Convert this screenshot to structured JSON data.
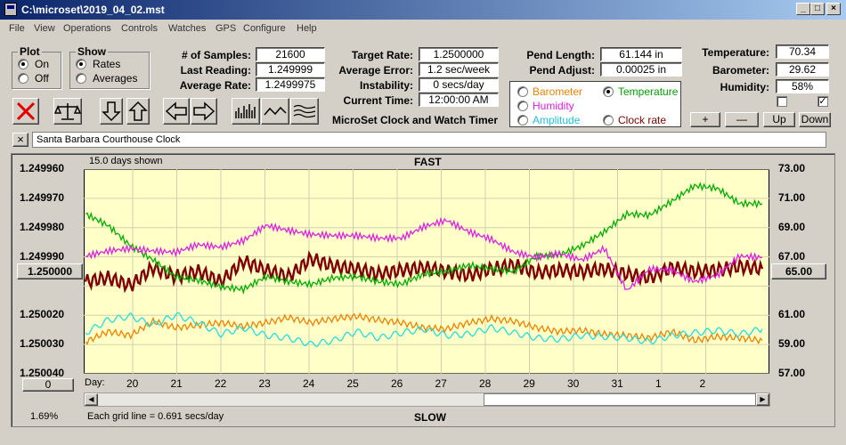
{
  "window": {
    "title": "C:\\microset\\2019_04_02.mst"
  },
  "menu": [
    "File",
    "View",
    "Operations",
    "Controls",
    "Watches",
    "GPS",
    "Configure",
    "Help"
  ],
  "plot_group": {
    "title": "Plot",
    "on": "On",
    "off": "Off",
    "selected": "On"
  },
  "show_group": {
    "title": "Show",
    "rates": "Rates",
    "averages": "Averages",
    "selected": "Rates"
  },
  "stats": {
    "samples_label": "# of Samples:",
    "samples": "21600",
    "last_label": "Last Reading:",
    "last": "1.249999",
    "avg_label": "Average Rate:",
    "avg": "1.2499975",
    "target_label": "Target Rate:",
    "target": "1.2500000",
    "avgerr_label": "Average Error:",
    "avgerr": "1.2 sec/week",
    "instab_label": "Instability:",
    "instab": "0 secs/day",
    "time_label": "Current Time:",
    "time": "12:00:00 AM",
    "pendlen_label": "Pend Length:",
    "pendlen": "61.144 in",
    "pendadj_label": "Pend Adjust:",
    "pendadj": "0.00025 in",
    "temp_label": "Temperature:",
    "temp": "70.34",
    "baro_label": "Barometer:",
    "baro": "29.62",
    "humid_label": "Humidity:",
    "humid": "58%"
  },
  "app_caption": "MicroSet Clock and Watch Timer",
  "sensor_options": {
    "barometer": "Barometer",
    "temperature": "Temperature",
    "humidity": "Humidity",
    "amplitude": "Amplitude",
    "clockrate": "Clock rate",
    "selected": "Temperature"
  },
  "controls": {
    "plus": "+",
    "minus": "—",
    "up": "Up",
    "down": "Down",
    "close_x": "×"
  },
  "clock_name": "Santa Barbara Courthouse Clock",
  "toolbar_icons": [
    "stop-icon",
    "balance-icon",
    "arrow-down-icon",
    "arrow-up-icon",
    "arrow-left-icon",
    "arrow-right-icon",
    "bar-chart-icon",
    "wave-icon",
    "multi-wave-icon"
  ],
  "colors": {
    "rate": "#800000",
    "temperature": "#00b000",
    "humidity": "#e020e0",
    "barometer": "#f08000",
    "amplitude": "#20e0e0",
    "plot_bg": "#ffffc8"
  },
  "chart_header": {
    "days_shown": "15.0 days shown",
    "fast": "FAST",
    "slow": "SLOW",
    "grid_note": "Each grid line = 0.691 secs/day",
    "day_label": "Day:",
    "pct": "1.69%",
    "left_button": "1.250000",
    "right_button": "65.00",
    "zero_button": "0"
  },
  "chart_data": {
    "type": "line",
    "y_left_ticks": [
      "1.249960",
      "1.249970",
      "1.249980",
      "1.249990",
      "1.250000",
      "1.250020",
      "1.250030",
      "1.250040"
    ],
    "y_right_ticks": [
      "73.00",
      "71.00",
      "69.00",
      "67.00",
      "65.00",
      "61.00",
      "59.00",
      "57.00"
    ],
    "y_right_range": [
      57,
      73
    ],
    "x_day_ticks": [
      "20",
      "21",
      "22",
      "23",
      "24",
      "25",
      "26",
      "27",
      "28",
      "29",
      "30",
      "31",
      "1",
      "2"
    ],
    "x_range_days": [
      0,
      15
    ],
    "series": [
      {
        "color": "#800000",
        "x": [
          0,
          0.5,
          1,
          1.5,
          2,
          2.5,
          3,
          3.5,
          4,
          4.5,
          5,
          5.5,
          6,
          6.5,
          7,
          7.5,
          8,
          8.5,
          9,
          9.5,
          10,
          10.5,
          11,
          11.5,
          12,
          12.5,
          13,
          13.5,
          14,
          14.5,
          15
        ],
        "y": [
          64.2,
          64.5,
          63.9,
          65.3,
          64.6,
          65.0,
          64.2,
          65.8,
          65.1,
          64.6,
          66.0,
          65.4,
          65.2,
          64.8,
          65.1,
          65.3,
          65.0,
          64.7,
          65.2,
          65.5,
          64.9,
          65.1,
          65.0,
          65.2,
          64.8,
          64.5,
          65.3,
          65.0,
          65.1,
          65.4,
          65.2
        ]
      },
      {
        "color": "#00b000",
        "x": [
          0,
          0.5,
          1,
          1.5,
          2,
          2.5,
          3,
          3.5,
          4,
          4.5,
          5,
          5.5,
          6,
          6.5,
          7,
          7.5,
          8,
          8.5,
          9,
          9.5,
          10,
          10.5,
          11,
          11.5,
          12,
          12.5,
          13,
          13.5,
          14,
          14.5,
          15
        ],
        "y": [
          69.5,
          68.6,
          67.0,
          65.9,
          64.6,
          64.3,
          63.8,
          63.6,
          64.6,
          64.2,
          64.0,
          64.5,
          64.6,
          64.2,
          64.0,
          64.8,
          65.0,
          65.5,
          65.2,
          65.0,
          66.2,
          66.3,
          67.0,
          68.1,
          69.5,
          69.4,
          70.5,
          71.7,
          71.5,
          70.3,
          70.3
        ]
      },
      {
        "color": "#e020e0",
        "x": [
          0,
          0.5,
          1,
          1.5,
          2,
          2.5,
          3,
          3.5,
          4,
          4.5,
          5,
          5.5,
          6,
          6.5,
          7,
          7.5,
          8,
          8.5,
          9,
          9.5,
          10,
          10.5,
          11,
          11.5,
          12,
          12.5,
          13,
          13.5,
          14,
          14.5,
          15
        ],
        "y": [
          66.2,
          66.6,
          66.8,
          66.6,
          66.5,
          67.1,
          66.9,
          67.4,
          68.6,
          68.2,
          67.9,
          67.8,
          67.8,
          67.6,
          67.6,
          68.5,
          69.0,
          68.1,
          67.5,
          66.5,
          66.1,
          66.4,
          65.9,
          66.8,
          63.5,
          65.2,
          65.1,
          64.2,
          64.7,
          66.2,
          66.1
        ]
      },
      {
        "color": "#f08000",
        "x": [
          0,
          0.5,
          1,
          1.5,
          2,
          2.5,
          3,
          3.5,
          4,
          4.5,
          5,
          5.5,
          6,
          6.5,
          7,
          7.5,
          8,
          8.5,
          9,
          9.5,
          10,
          10.5,
          11,
          11.5,
          12,
          12.5,
          13,
          13.5,
          14,
          14.5,
          15
        ],
        "y": [
          59.5,
          60.3,
          60.0,
          61.1,
          60.6,
          60.8,
          61.0,
          60.7,
          61.0,
          61.4,
          61.0,
          61.3,
          61.5,
          61.2,
          61.0,
          60.6,
          60.5,
          61.0,
          61.3,
          61.1,
          60.6,
          60.3,
          60.4,
          60.1,
          60.0,
          59.8,
          60.3,
          59.6,
          59.9,
          59.8,
          59.6
        ]
      },
      {
        "color": "#20e0e0",
        "x": [
          0,
          0.5,
          1,
          1.5,
          2,
          2.5,
          3,
          3.5,
          4,
          4.5,
          5,
          5.5,
          6,
          6.5,
          7,
          7.5,
          8,
          8.5,
          9,
          9.5,
          10,
          10.5,
          11,
          11.5,
          12,
          12.5,
          13,
          13.5,
          14,
          14.5,
          15
        ],
        "y": [
          60.2,
          61.2,
          61.5,
          60.8,
          61.6,
          61.0,
          60.1,
          60.6,
          60.0,
          59.8,
          59.3,
          59.6,
          60.3,
          59.8,
          60.2,
          60.5,
          60.0,
          60.1,
          60.6,
          60.2,
          59.8,
          59.7,
          60.0,
          59.9,
          59.8,
          59.5,
          60.0,
          60.2,
          60.4,
          60.1,
          60.5
        ]
      }
    ]
  }
}
